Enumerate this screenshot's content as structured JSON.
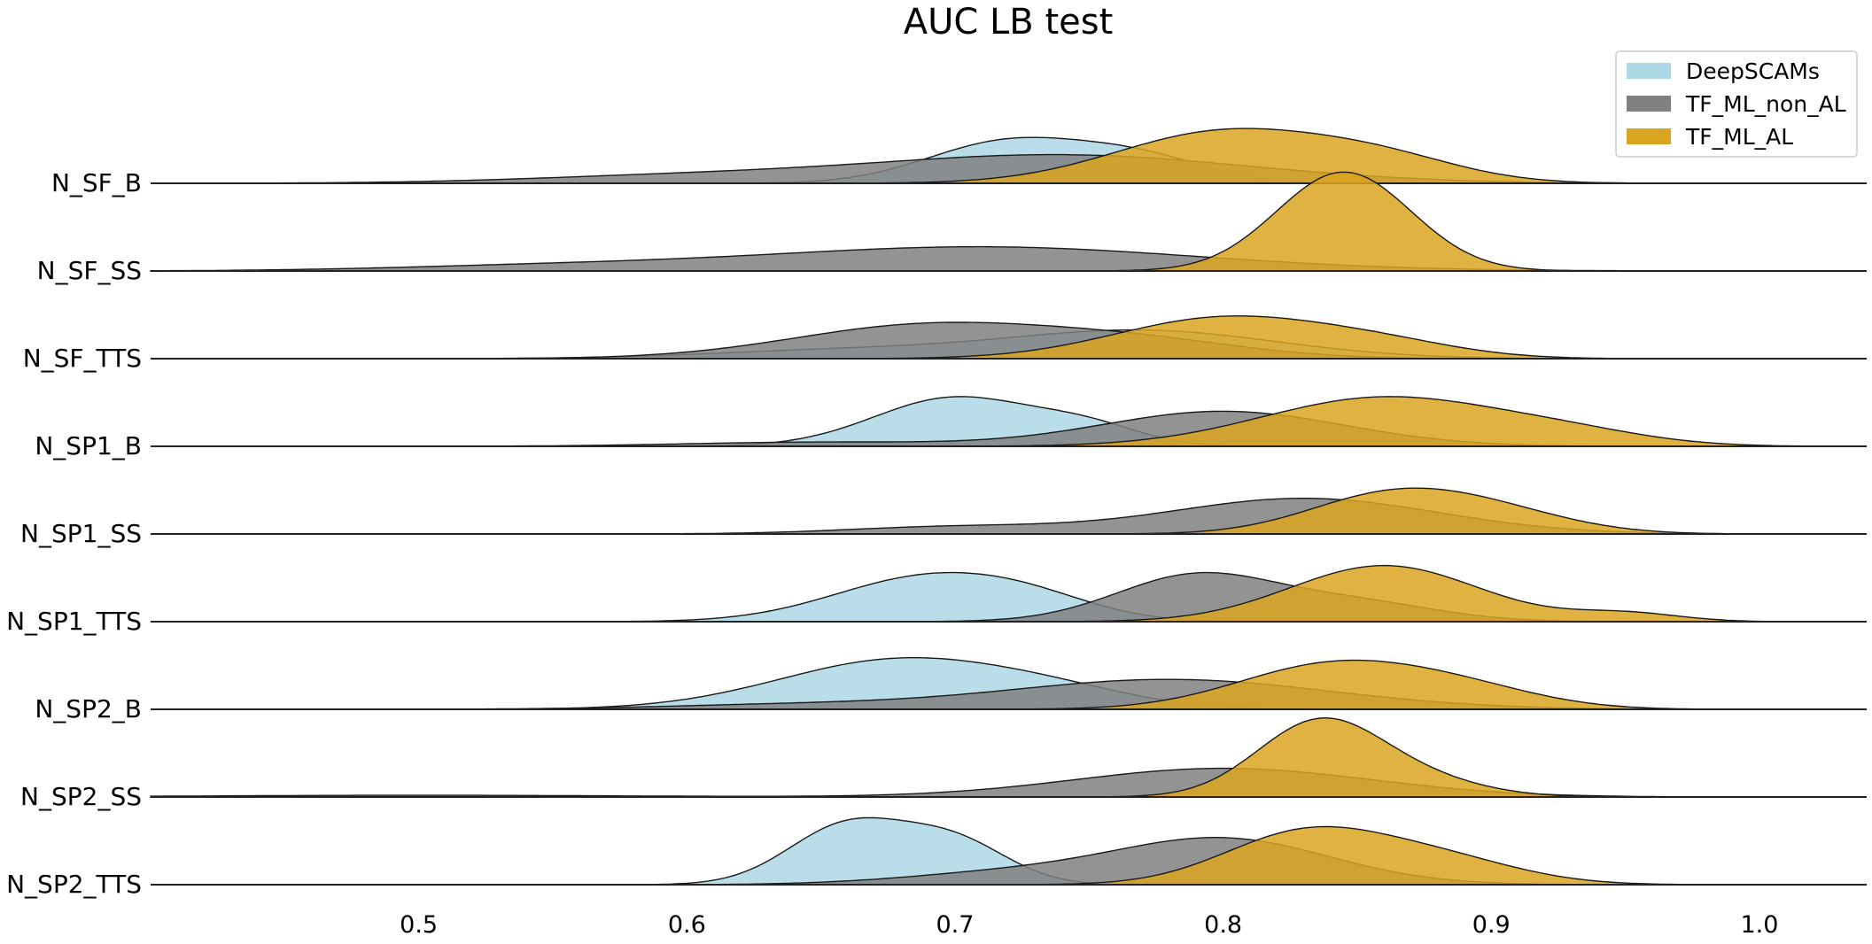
{
  "chart_data": {
    "type": "ridgeline",
    "title": "AUC LB test",
    "xlabel": "",
    "ylabel": "",
    "xlim": [
      0.4,
      1.04
    ],
    "x_ticks": [
      0.5,
      0.6,
      0.7,
      0.8,
      0.9,
      1.0
    ],
    "x_tick_labels": [
      "0.5",
      "0.6",
      "0.7",
      "0.8",
      "0.9",
      "1.0"
    ],
    "grid": false,
    "legend_position": "top-right",
    "categories": [
      "N_SF_B",
      "N_SF_SS",
      "N_SF_TTS",
      "N_SP1_B",
      "N_SP1_SS",
      "N_SP1_TTS",
      "N_SP2_B",
      "N_SP2_SS",
      "N_SP2_TTS"
    ],
    "series": [
      {
        "name": "DeepSCAMs",
        "color": "#add8e6",
        "ridges": [
          {
            "category": "N_SF_B",
            "components": [
              {
                "mu": 0.72,
                "sd": 0.03,
                "w": 0.8
              },
              {
                "mu": 0.77,
                "sd": 0.025,
                "w": 0.45
              }
            ],
            "peak": 0.72
          },
          {
            "category": "N_SF_SS",
            "components": [],
            "peak": 0
          },
          {
            "category": "N_SF_TTS",
            "components": [
              {
                "mu": 0.77,
                "sd": 0.05,
                "w": 1.0
              },
              {
                "mu": 0.66,
                "sd": 0.05,
                "w": 0.3
              }
            ],
            "peak": 0.45
          },
          {
            "category": "N_SP1_B",
            "components": [
              {
                "mu": 0.7,
                "sd": 0.03,
                "w": 1.0
              },
              {
                "mu": 0.75,
                "sd": 0.02,
                "w": 0.35
              }
            ],
            "peak": 0.78
          },
          {
            "category": "N_SP1_SS",
            "components": [],
            "peak": 0
          },
          {
            "category": "N_SP1_TTS",
            "components": [
              {
                "mu": 0.69,
                "sd": 0.035,
                "w": 1.0
              },
              {
                "mu": 0.73,
                "sd": 0.025,
                "w": 0.3
              }
            ],
            "peak": 0.77
          },
          {
            "category": "N_SP2_B",
            "components": [
              {
                "mu": 0.68,
                "sd": 0.045,
                "w": 1.0
              },
              {
                "mu": 0.74,
                "sd": 0.03,
                "w": 0.2
              }
            ],
            "peak": 0.81
          },
          {
            "category": "N_SP2_SS",
            "components": [],
            "peak": 0
          },
          {
            "category": "N_SP2_TTS",
            "components": [
              {
                "mu": 0.66,
                "sd": 0.022,
                "w": 1.0
              },
              {
                "mu": 0.7,
                "sd": 0.02,
                "w": 0.7
              }
            ],
            "peak": 1.05
          }
        ]
      },
      {
        "name": "TF_ML_non_AL",
        "color": "#808080",
        "ridges": [
          {
            "category": "N_SF_B",
            "components": [
              {
                "mu": 0.74,
                "sd": 0.07,
                "w": 1.0
              },
              {
                "mu": 0.6,
                "sd": 0.06,
                "w": 0.25
              }
            ],
            "peak": 0.45
          },
          {
            "category": "N_SF_SS",
            "components": [
              {
                "mu": 0.71,
                "sd": 0.08,
                "w": 1.0
              },
              {
                "mu": 0.55,
                "sd": 0.06,
                "w": 0.2
              }
            ],
            "peak": 0.38
          },
          {
            "category": "N_SF_TTS",
            "components": [
              {
                "mu": 0.69,
                "sd": 0.05,
                "w": 1.0
              },
              {
                "mu": 0.77,
                "sd": 0.04,
                "w": 0.45
              }
            ],
            "peak": 0.57
          },
          {
            "category": "N_SP1_B",
            "components": [
              {
                "mu": 0.8,
                "sd": 0.045,
                "w": 1.0
              },
              {
                "mu": 0.65,
                "sd": 0.05,
                "w": 0.12
              }
            ],
            "peak": 0.55
          },
          {
            "category": "N_SP1_SS",
            "components": [
              {
                "mu": 0.83,
                "sd": 0.05,
                "w": 1.0
              },
              {
                "mu": 0.7,
                "sd": 0.04,
                "w": 0.2
              }
            ],
            "peak": 0.56
          },
          {
            "category": "N_SP1_TTS",
            "components": [
              {
                "mu": 0.79,
                "sd": 0.03,
                "w": 1.0
              },
              {
                "mu": 0.85,
                "sd": 0.03,
                "w": 0.4
              }
            ],
            "peak": 0.77
          },
          {
            "category": "N_SP2_B",
            "components": [
              {
                "mu": 0.78,
                "sd": 0.06,
                "w": 1.0
              },
              {
                "mu": 0.64,
                "sd": 0.05,
                "w": 0.15
              }
            ],
            "peak": 0.47
          },
          {
            "category": "N_SP2_SS",
            "components": [
              {
                "mu": 0.8,
                "sd": 0.055,
                "w": 1.0
              },
              {
                "mu": 0.5,
                "sd": 0.08,
                "w": 0.06
              }
            ],
            "peak": 0.45
          },
          {
            "category": "N_SP2_TTS",
            "components": [
              {
                "mu": 0.8,
                "sd": 0.04,
                "w": 1.0
              },
              {
                "mu": 0.72,
                "sd": 0.04,
                "w": 0.25
              }
            ],
            "peak": 0.74
          }
        ]
      },
      {
        "name": "TF_ML_AL",
        "color": "#daa520",
        "ridges": [
          {
            "category": "N_SF_B",
            "components": [
              {
                "mu": 0.8,
                "sd": 0.04,
                "w": 1.0
              },
              {
                "mu": 0.86,
                "sd": 0.03,
                "w": 0.4
              }
            ],
            "peak": 0.86
          },
          {
            "category": "N_SF_SS",
            "components": [
              {
                "mu": 0.845,
                "sd": 0.025,
                "w": 1.0
              }
            ],
            "peak": 1.55
          },
          {
            "category": "N_SF_TTS",
            "components": [
              {
                "mu": 0.8,
                "sd": 0.04,
                "w": 1.0
              },
              {
                "mu": 0.86,
                "sd": 0.03,
                "w": 0.3
              }
            ],
            "peak": 0.67
          },
          {
            "category": "N_SP1_B",
            "components": [
              {
                "mu": 0.86,
                "sd": 0.045,
                "w": 1.0
              },
              {
                "mu": 0.93,
                "sd": 0.03,
                "w": 0.2
              }
            ],
            "peak": 0.78
          },
          {
            "category": "N_SP1_SS",
            "components": [
              {
                "mu": 0.86,
                "sd": 0.03,
                "w": 1.0
              },
              {
                "mu": 0.9,
                "sd": 0.03,
                "w": 0.6
              }
            ],
            "peak": 0.72
          },
          {
            "category": "N_SP1_TTS",
            "components": [
              {
                "mu": 0.86,
                "sd": 0.035,
                "w": 1.0
              },
              {
                "mu": 0.95,
                "sd": 0.02,
                "w": 0.15
              }
            ],
            "peak": 0.88
          },
          {
            "category": "N_SP2_B",
            "components": [
              {
                "mu": 0.84,
                "sd": 0.035,
                "w": 1.0
              },
              {
                "mu": 0.89,
                "sd": 0.03,
                "w": 0.4
              }
            ],
            "peak": 0.77
          },
          {
            "category": "N_SP2_SS",
            "components": [
              {
                "mu": 0.835,
                "sd": 0.023,
                "w": 1.0
              },
              {
                "mu": 0.87,
                "sd": 0.025,
                "w": 0.25
              }
            ],
            "peak": 1.24
          },
          {
            "category": "N_SP2_TTS",
            "components": [
              {
                "mu": 0.83,
                "sd": 0.03,
                "w": 1.0
              },
              {
                "mu": 0.88,
                "sd": 0.03,
                "w": 0.5
              }
            ],
            "peak": 0.91
          }
        ]
      }
    ]
  }
}
